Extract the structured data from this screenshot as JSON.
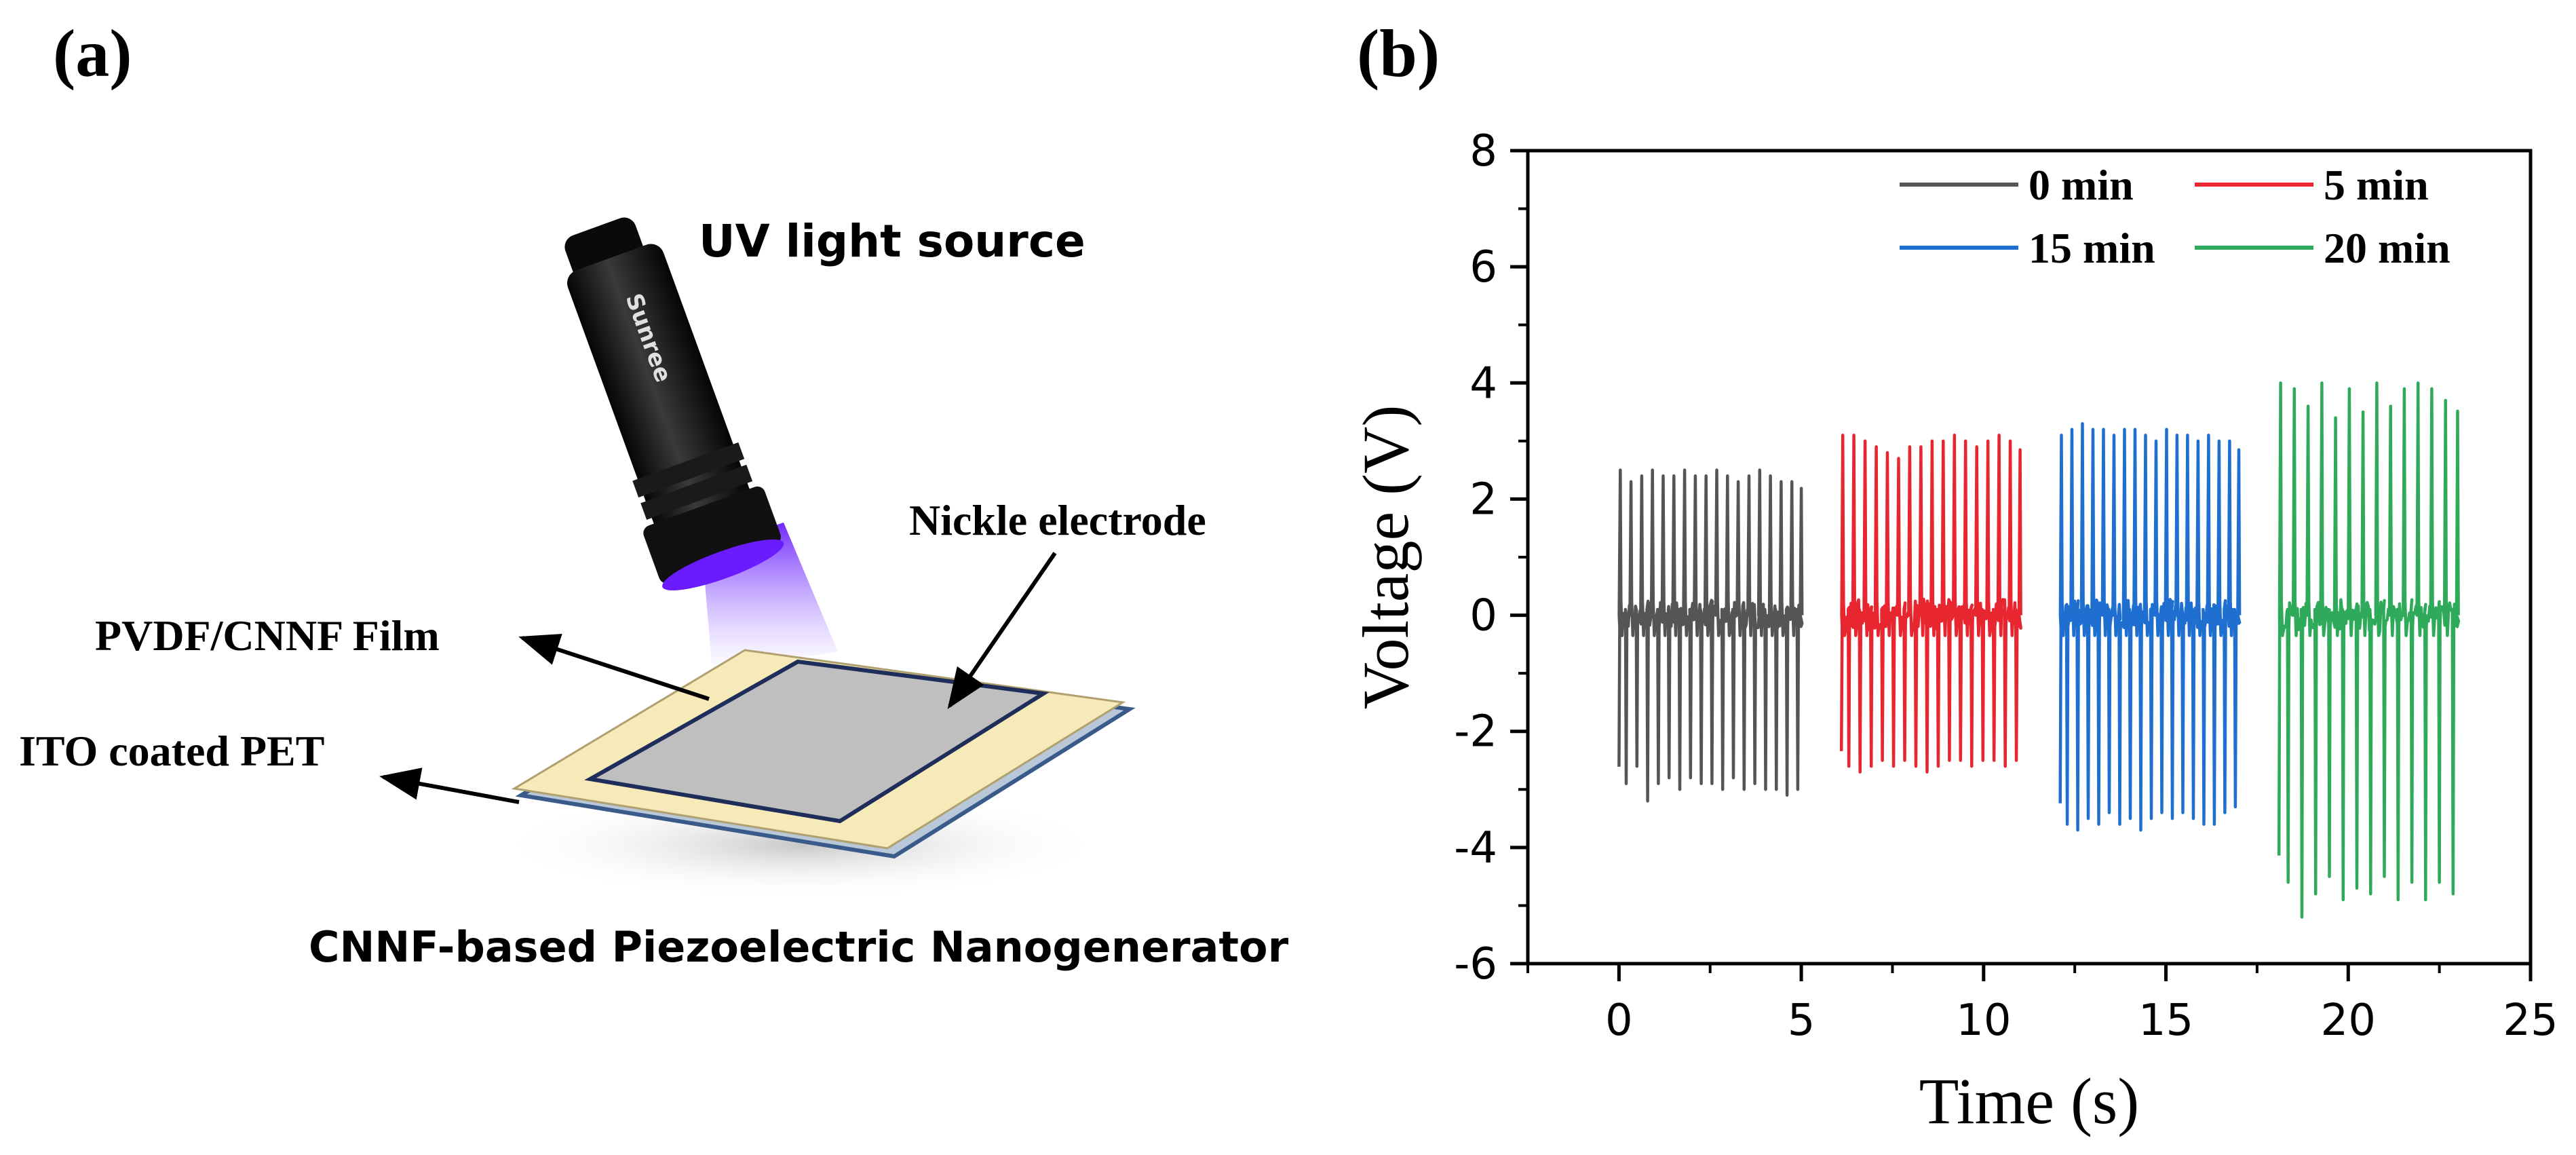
{
  "panel_a": {
    "label": "(a)",
    "uv_label": "UV light source",
    "flashlight_brand": "Sunree",
    "electrode_label": "Nickle electrode",
    "film_label": "PVDF/CNNF Film",
    "substrate_label": "ITO coated PET",
    "caption": "CNNF-based Piezoelectric Nanogenerator"
  },
  "panel_b": {
    "label": "(b)"
  },
  "colors": {
    "s0": "#555555",
    "s5": "#e8262f",
    "s15": "#1f6fd0",
    "s20": "#2faa5a",
    "uv": "#6a1cff",
    "film": "#f6eab8",
    "electrode": "#bfbfbf"
  },
  "chart_data": {
    "type": "line",
    "title": "",
    "xlabel": "Time (s)",
    "ylabel": "Voltage (V)",
    "xlim": [
      -2.5,
      25
    ],
    "ylim": [
      -6,
      8
    ],
    "xticks": [
      0,
      5,
      10,
      15,
      20,
      25
    ],
    "yticks": [
      -6,
      -4,
      -2,
      0,
      2,
      4,
      6,
      8
    ],
    "grid": false,
    "legend_position": "top-right",
    "series": [
      {
        "name": "0 min",
        "color": "#555555",
        "t_start": 0.0,
        "t_end": 5.0,
        "peaks_pos": [
          2.5,
          2.3,
          2.4,
          2.5,
          2.4,
          2.4,
          2.5,
          2.4,
          2.4,
          2.5,
          2.4,
          2.3,
          2.4,
          2.5,
          2.4,
          2.3,
          2.3
        ],
        "peaks_neg": [
          -2.9,
          -2.6,
          -3.2,
          -2.9,
          -2.8,
          -3.0,
          -2.8,
          -2.9,
          -2.9,
          -3.0,
          -2.8,
          -3.0,
          -2.9,
          -3.0,
          -3.0,
          -3.1,
          -3.0
        ]
      },
      {
        "name": "5 min",
        "color": "#e8262f",
        "t_start": 6.1,
        "t_end": 11.0,
        "peaks_pos": [
          3.1,
          3.1,
          3.0,
          2.9,
          2.8,
          2.7,
          2.9,
          2.9,
          3.0,
          3.0,
          3.1,
          3.0,
          2.9,
          3.0,
          3.1,
          3.0
        ],
        "peaks_neg": [
          -2.6,
          -2.7,
          -2.6,
          -2.5,
          -2.6,
          -2.5,
          -2.6,
          -2.7,
          -2.6,
          -2.5,
          -2.5,
          -2.6,
          -2.5,
          -2.5,
          -2.6,
          -2.5
        ]
      },
      {
        "name": "15 min",
        "color": "#1f6fd0",
        "t_start": 12.1,
        "t_end": 17.0,
        "peaks_pos": [
          3.1,
          3.2,
          3.3,
          3.2,
          3.2,
          3.1,
          3.2,
          3.2,
          3.1,
          3.0,
          3.2,
          3.1,
          3.1,
          3.0,
          3.1,
          3.0,
          3.0
        ],
        "peaks_neg": [
          -3.6,
          -3.7,
          -3.5,
          -3.6,
          -3.4,
          -3.6,
          -3.5,
          -3.7,
          -3.5,
          -3.4,
          -3.5,
          -3.4,
          -3.5,
          -3.6,
          -3.6,
          -3.4,
          -3.3
        ]
      },
      {
        "name": "20 min",
        "color": "#2faa5a",
        "t_start": 18.1,
        "t_end": 23.0,
        "peaks_pos": [
          4.0,
          3.9,
          3.6,
          4.0,
          3.4,
          3.9,
          3.5,
          4.0,
          3.6,
          3.9,
          4.0,
          3.9,
          3.7
        ],
        "peaks_neg": [
          -4.6,
          -5.2,
          -4.8,
          -4.5,
          -4.9,
          -4.7,
          -4.8,
          -4.5,
          -4.9,
          -4.6,
          -4.9,
          -4.6,
          -4.8
        ]
      }
    ]
  }
}
